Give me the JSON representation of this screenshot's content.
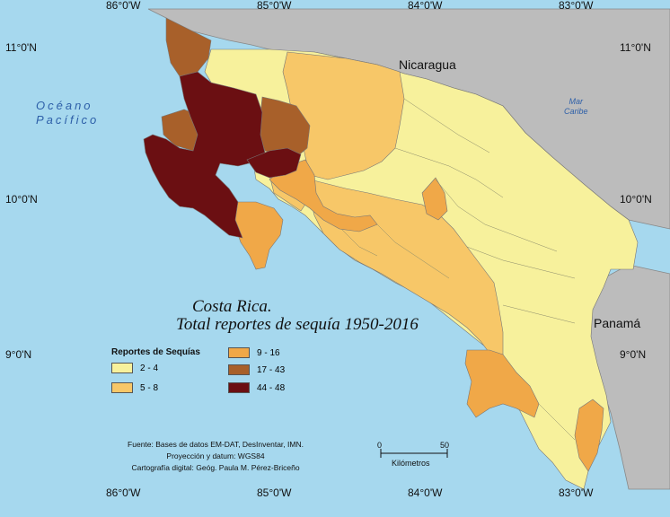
{
  "ticks": {
    "top": [
      "86°0'W",
      "85°0'W",
      "84°0'W",
      "83°0'W"
    ],
    "bottom": [
      "86°0'W",
      "85°0'W",
      "84°0'W",
      "83°0'W"
    ],
    "left": [
      "11°0'N",
      "10°0'N",
      "9°0'N"
    ],
    "right": [
      "11°0'N",
      "10°0'N",
      "9°0'N"
    ]
  },
  "labels": {
    "ocean_line1": "Océano",
    "ocean_line2": "Pacífico",
    "caribe_line1": "Mar",
    "caribe_line2": "Caribe",
    "nicaragua": "Nicaragua",
    "panama": "Panamá"
  },
  "title": {
    "line1": "Costa Rica.",
    "line2": "Total reportes de sequía 1950-2016"
  },
  "legend": {
    "title": "Reportes de Sequías",
    "items": [
      {
        "label": "2 - 4",
        "color": "#f7f19c"
      },
      {
        "label": "5 - 8",
        "color": "#f7c768"
      },
      {
        "label": "9 - 16",
        "color": "#f0a848"
      },
      {
        "label": "17 - 43",
        "color": "#a8602a"
      },
      {
        "label": "44 - 48",
        "color": "#6b0f12"
      }
    ]
  },
  "credits": {
    "line1": "Fuente: Bases de datos EM-DAT, DesInventar, IMN.",
    "line2": "Proyección y datum: WGS84",
    "line3": "Cartografía digital: Geóg. Paula M. Pérez-Briceño"
  },
  "scale": {
    "start": "0",
    "end": "50",
    "unit": "Kilómetros"
  },
  "colors": {
    "sea": "#a6d8ee",
    "neighbor": "#bcbcbc",
    "border": "#777777"
  }
}
